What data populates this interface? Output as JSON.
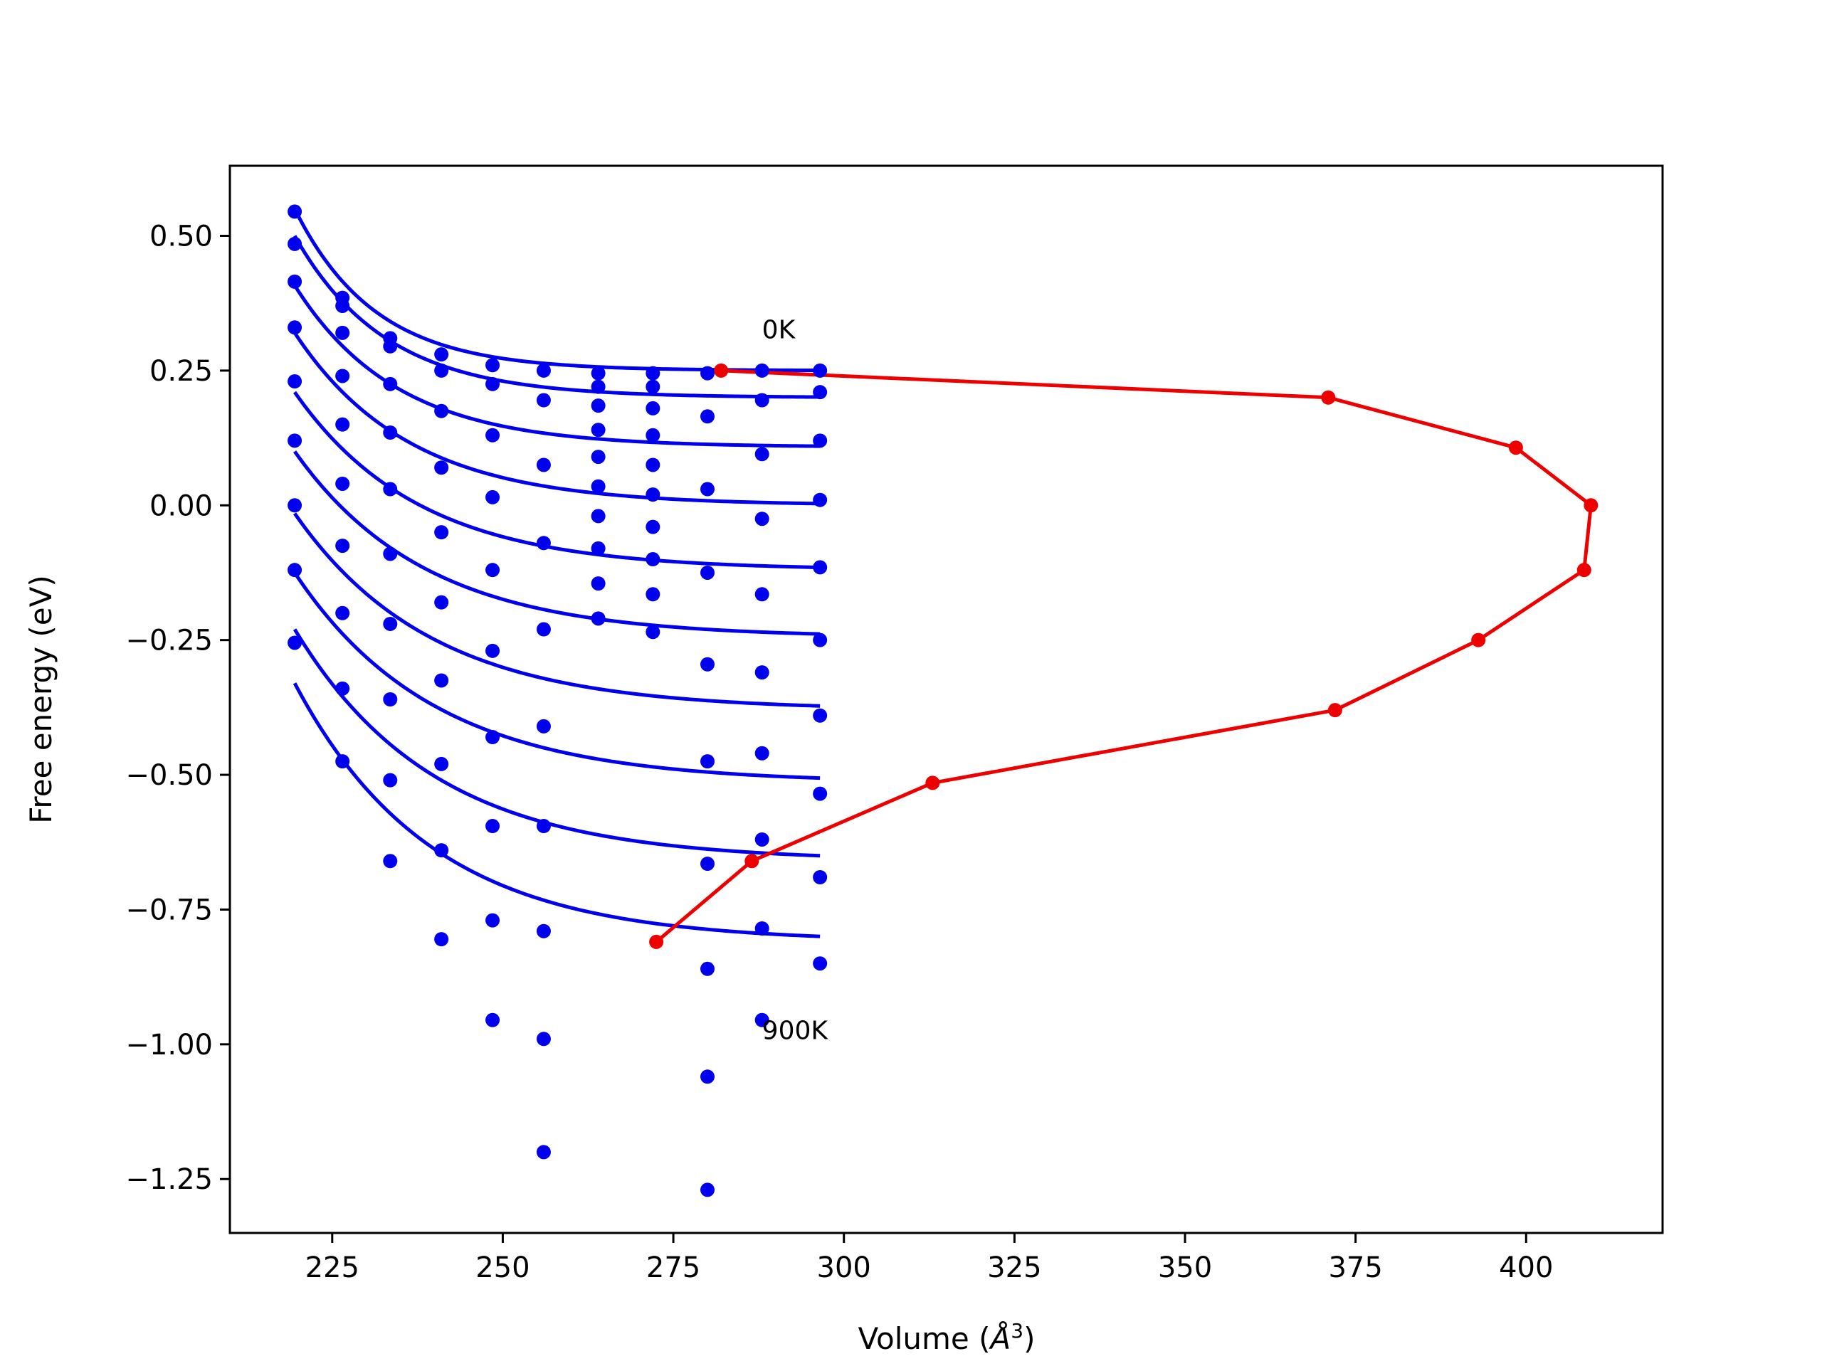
{
  "chart_data": {
    "type": "scatter",
    "xlabel": "Volume (",
    "xlabel_unit": "Å",
    "xlabel_exp": "3",
    "xlabel_close": ")",
    "ylabel": "Free energy (eV)",
    "xlim": [
      210,
      420
    ],
    "ylim": [
      -1.35,
      0.63
    ],
    "x_ticks": [
      225,
      250,
      275,
      300,
      325,
      350,
      375,
      400
    ],
    "y_ticks": [
      0.5,
      0.25,
      0.0,
      -0.25,
      -0.5,
      -0.75,
      -1.0,
      -1.25
    ],
    "x_tick_labels": [
      "225",
      "250",
      "275",
      "300",
      "325",
      "350",
      "375",
      "400"
    ],
    "y_tick_labels": [
      "0.50",
      "0.25",
      "0.00",
      "−0.25",
      "−0.50",
      "−0.75",
      "−1.00",
      "−1.25"
    ],
    "colors": {
      "points": "#0000ee",
      "fits": "#0000ee",
      "eq_line": "#ee0000",
      "axes": "#000000"
    },
    "annotations": [
      {
        "text": "0K",
        "x": 288,
        "y": 0.31
      },
      {
        "text": "900K",
        "x": 288,
        "y": -0.99
      }
    ],
    "data_points": {
      "name": "",
      "points": [
        [
          219.5,
          0.545
        ],
        [
          219.5,
          0.485
        ],
        [
          219.5,
          0.415
        ],
        [
          219.5,
          0.33
        ],
        [
          219.5,
          0.23
        ],
        [
          219.5,
          0.12
        ],
        [
          219.5,
          0.0
        ],
        [
          219.5,
          -0.12
        ],
        [
          219.5,
          -0.255
        ],
        [
          226.5,
          0.385
        ],
        [
          226.5,
          0.37
        ],
        [
          226.5,
          0.32
        ],
        [
          226.5,
          0.24
        ],
        [
          226.5,
          0.15
        ],
        [
          226.5,
          0.04
        ],
        [
          226.5,
          -0.075
        ],
        [
          226.5,
          -0.2
        ],
        [
          226.5,
          -0.34
        ],
        [
          226.5,
          -0.475
        ],
        [
          233.5,
          0.31
        ],
        [
          233.5,
          0.295
        ],
        [
          233.5,
          0.225
        ],
        [
          233.5,
          0.135
        ],
        [
          233.5,
          0.03
        ],
        [
          233.5,
          -0.09
        ],
        [
          233.5,
          -0.22
        ],
        [
          233.5,
          -0.36
        ],
        [
          233.5,
          -0.51
        ],
        [
          233.5,
          -0.66
        ],
        [
          241,
          0.28
        ],
        [
          241,
          0.25
        ],
        [
          241,
          0.175
        ],
        [
          241,
          0.07
        ],
        [
          241,
          -0.05
        ],
        [
          241,
          -0.18
        ],
        [
          241,
          -0.325
        ],
        [
          241,
          -0.48
        ],
        [
          241,
          -0.64
        ],
        [
          241,
          -0.805
        ],
        [
          248.5,
          0.26
        ],
        [
          248.5,
          0.225
        ],
        [
          248.5,
          0.13
        ],
        [
          248.5,
          0.015
        ],
        [
          248.5,
          -0.12
        ],
        [
          248.5,
          -0.27
        ],
        [
          248.5,
          -0.43
        ],
        [
          248.5,
          -0.595
        ],
        [
          248.5,
          -0.77
        ],
        [
          248.5,
          -0.955
        ],
        [
          256,
          0.25
        ],
        [
          256,
          0.195
        ],
        [
          256,
          0.075
        ],
        [
          256,
          -0.07
        ],
        [
          256,
          -0.23
        ],
        [
          256,
          -0.41
        ],
        [
          256,
          -0.595
        ],
        [
          256,
          -0.79
        ],
        [
          256,
          -0.99
        ],
        [
          256,
          -1.2
        ],
        [
          264,
          0.245
        ],
        [
          264,
          0.22
        ],
        [
          264,
          0.185
        ],
        [
          264,
          0.14
        ],
        [
          264,
          0.09
        ],
        [
          264,
          0.035
        ],
        [
          264,
          -0.02
        ],
        [
          264,
          -0.08
        ],
        [
          264,
          -0.145
        ],
        [
          264,
          -0.21
        ],
        [
          272,
          0.245
        ],
        [
          272,
          0.22
        ],
        [
          272,
          0.18
        ],
        [
          272,
          0.13
        ],
        [
          272,
          0.075
        ],
        [
          272,
          0.02
        ],
        [
          272,
          -0.04
        ],
        [
          272,
          -0.1
        ],
        [
          272,
          -0.165
        ],
        [
          272,
          -0.235
        ],
        [
          280,
          0.245
        ],
        [
          280,
          0.165
        ],
        [
          280,
          0.03
        ],
        [
          280,
          -0.125
        ],
        [
          280,
          -0.295
        ],
        [
          280,
          -0.475
        ],
        [
          280,
          -0.665
        ],
        [
          280,
          -0.86
        ],
        [
          280,
          -1.06
        ],
        [
          280,
          -1.27
        ],
        [
          288,
          0.25
        ],
        [
          288,
          0.195
        ],
        [
          288,
          0.095
        ],
        [
          288,
          -0.025
        ],
        [
          288,
          -0.165
        ],
        [
          288,
          -0.31
        ],
        [
          288,
          -0.46
        ],
        [
          288,
          -0.62
        ],
        [
          288,
          -0.785
        ],
        [
          288,
          -0.955
        ],
        [
          296.5,
          0.25
        ],
        [
          296.5,
          0.21
        ],
        [
          296.5,
          0.12
        ],
        [
          296.5,
          0.01
        ],
        [
          296.5,
          -0.115
        ],
        [
          296.5,
          -0.25
        ],
        [
          296.5,
          -0.39
        ],
        [
          296.5,
          -0.535
        ],
        [
          296.5,
          -0.69
        ],
        [
          296.5,
          -0.85
        ]
      ]
    },
    "fit_curves": [
      {
        "name": "",
        "E0": 0.25,
        "amp": 0.3,
        "k": 0.085
      },
      {
        "name": "",
        "E0": 0.2,
        "amp": 0.3,
        "k": 0.075
      },
      {
        "name": "",
        "E0": 0.108,
        "amp": 0.3,
        "k": 0.067
      },
      {
        "name": "",
        "E0": 0.0,
        "amp": 0.32,
        "k": 0.06
      },
      {
        "name": "",
        "E0": -0.12,
        "amp": 0.33,
        "k": 0.055
      },
      {
        "name": "",
        "E0": -0.245,
        "amp": 0.345,
        "k": 0.052
      },
      {
        "name": "",
        "E0": -0.38,
        "amp": 0.365,
        "k": 0.05
      },
      {
        "name": "",
        "E0": -0.515,
        "amp": 0.39,
        "k": 0.049
      },
      {
        "name": "",
        "E0": -0.66,
        "amp": 0.43,
        "k": 0.049
      },
      {
        "name": "",
        "E0": -0.81,
        "amp": 0.48,
        "k": 0.05
      }
    ],
    "fit_range": [
      219.5,
      296.5
    ],
    "equilibrium_line": {
      "name": "",
      "x": [
        282,
        371,
        398.5,
        409.5,
        408.5,
        393,
        372,
        313,
        286.5,
        272.5
      ],
      "y": [
        0.25,
        0.2,
        0.107,
        0.0,
        -0.12,
        -0.25,
        -0.38,
        -0.515,
        -0.66,
        -0.81
      ]
    }
  }
}
